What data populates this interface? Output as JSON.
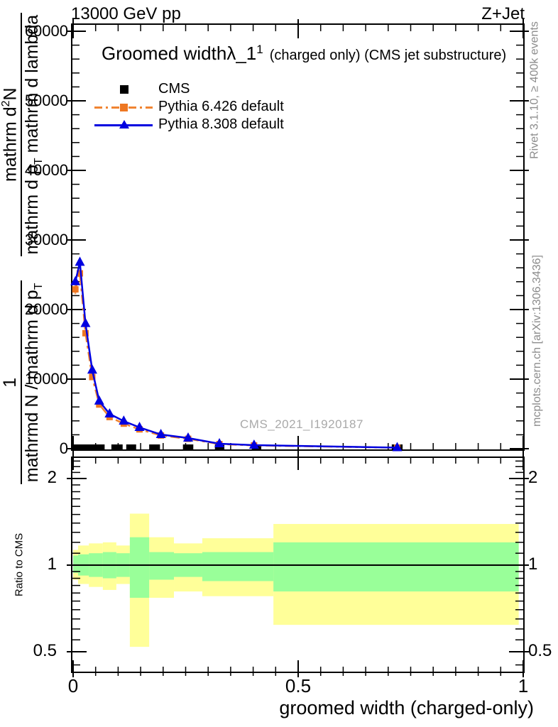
{
  "header": {
    "beam_energy": "13000 GeV pp",
    "process": "Z+Jet"
  },
  "title": {
    "prefix": "Groomed width",
    "symbol": "λ_1",
    "power": "1",
    "suffix": "(charged only) (CMS jet substructure)"
  },
  "legend": {
    "entries": [
      {
        "label": "CMS",
        "marker": "black-square"
      },
      {
        "label": "Pythia 6.426 default",
        "marker": "orange-square-dashdot"
      },
      {
        "label": "Pythia 8.308 default",
        "marker": "blue-triangle-solid"
      }
    ]
  },
  "ylabel_parts": {
    "frac1_num": "1",
    "frac1_den_main": "mathrmd N / mathrm d p",
    "frac1_den_sub": "T",
    "frac2_num_a": "mathrm d",
    "frac2_num_sup": "2",
    "frac2_num_b": "N",
    "frac2_den_a": "mathrm d p",
    "frac2_den_sub": "T",
    "frac2_den_b": " mathrm d lambda"
  },
  "side_labels": {
    "rivet": "Rivet 3.1.10, ≥ 400k events",
    "mcplots": "mcplots.cern.ch [arXiv:1306.3436]"
  },
  "watermark": "CMS_2021_I1920187",
  "colors": {
    "pythia6_line": "#f08432",
    "pythia6_marker": "#ee7722",
    "pythia6_error": "#f4a46a",
    "pythia8": "#0000e0",
    "cms": "#000000",
    "band_yellow": "#ffff99",
    "band_green": "#99ff99",
    "gray_text": "#8c8c8c",
    "watermark": "#a9a9a9"
  },
  "chart_data": {
    "type": "line",
    "title": "Groomed width λ_1^1 (charged only) (CMS jet substructure)",
    "xlabel": "groomed width (charged-only)",
    "ylabel": "1/(dN/dp_T) d^2N/(dp_T dlambda)",
    "xlim": [
      -0.005,
      1.003
    ],
    "ylim": [
      0,
      61100
    ],
    "xticks": [
      0,
      0.5,
      1
    ],
    "yticks": [
      0,
      10000,
      20000,
      30000,
      40000,
      50000,
      60000
    ],
    "x_minor_step": 0.05,
    "y_minor_step": 2000,
    "grid": false,
    "legend_position": "top-left",
    "x": [
      0.005,
      0.015,
      0.0275,
      0.0425,
      0.058,
      0.081,
      0.1125,
      0.1475,
      0.195,
      0.2555,
      0.325,
      0.402,
      0.72
    ],
    "series": [
      {
        "name": "CMS",
        "kind": "data-markers",
        "color": "#000000",
        "marker": "square",
        "values_note": "plotted at ~0 on this scale",
        "bin_spans": [
          [
            0.0,
            0.07
          ],
          [
            0.085,
            0.11
          ],
          [
            0.118,
            0.14
          ],
          [
            0.169,
            0.193
          ],
          [
            0.244,
            0.267
          ],
          [
            0.315,
            0.336
          ],
          [
            0.397,
            0.418
          ],
          [
            0.708,
            0.732
          ]
        ]
      },
      {
        "name": "Pythia 6.426 default",
        "kind": "line-markers",
        "color": "#f08432",
        "marker": "square",
        "line": "dash-dot",
        "values": [
          22900,
          25200,
          16600,
          10300,
          6350,
          4550,
          3600,
          2780,
          1900,
          1420,
          660,
          470,
          140
        ],
        "yerr": [
          700,
          500,
          350,
          250,
          180,
          130,
          100,
          80,
          60,
          45,
          30,
          25,
          15
        ]
      },
      {
        "name": "Pythia 8.308 default",
        "kind": "line-markers",
        "color": "#0000e0",
        "marker": "triangle",
        "line": "solid",
        "values": [
          24000,
          26800,
          18000,
          11300,
          6850,
          5000,
          3970,
          3060,
          2040,
          1530,
          714,
          510,
          150
        ]
      }
    ],
    "ratio_panel": {
      "ylabel": "Ratio to CMS",
      "yscale": "log2",
      "yticks": [
        0.5,
        1,
        2
      ],
      "y_minor_ticks": [
        0.45,
        0.55,
        0.6,
        0.65,
        0.7,
        0.75,
        0.8,
        0.85,
        0.9,
        0.95,
        1.1,
        1.2,
        1.3,
        1.4,
        1.5,
        1.6,
        1.7,
        1.8,
        1.9,
        2.1,
        2.2,
        2.3
      ],
      "ref_line": 1,
      "bands": [
        {
          "x0": 0.0,
          "x1": 0.011,
          "yellow": [
            0.89,
            1.13
          ],
          "green": [
            0.94,
            1.08
          ]
        },
        {
          "x0": 0.011,
          "x1": 0.035,
          "yellow": [
            0.86,
            1.17
          ],
          "green": [
            0.92,
            1.09
          ]
        },
        {
          "x0": 0.035,
          "x1": 0.066,
          "yellow": [
            0.84,
            1.19
          ],
          "green": [
            0.91,
            1.1
          ]
        },
        {
          "x0": 0.066,
          "x1": 0.096,
          "yellow": [
            0.82,
            1.2
          ],
          "green": [
            0.9,
            1.11
          ]
        },
        {
          "x0": 0.096,
          "x1": 0.126,
          "yellow": [
            0.86,
            1.17
          ],
          "green": [
            0.91,
            1.1
          ]
        },
        {
          "x0": 0.126,
          "x1": 0.169,
          "yellow": [
            0.52,
            1.51
          ],
          "green": [
            0.77,
            1.25
          ]
        },
        {
          "x0": 0.169,
          "x1": 0.224,
          "yellow": [
            0.77,
            1.25
          ],
          "green": [
            0.89,
            1.11
          ]
        },
        {
          "x0": 0.224,
          "x1": 0.287,
          "yellow": [
            0.81,
            1.19
          ],
          "green": [
            0.91,
            1.1
          ]
        },
        {
          "x0": 0.287,
          "x1": 0.445,
          "yellow": [
            0.78,
            1.24
          ],
          "green": [
            0.88,
            1.11
          ]
        },
        {
          "x0": 0.445,
          "x1": 0.99,
          "yellow": [
            0.62,
            1.39
          ],
          "green": [
            0.81,
            1.2
          ]
        }
      ]
    }
  }
}
